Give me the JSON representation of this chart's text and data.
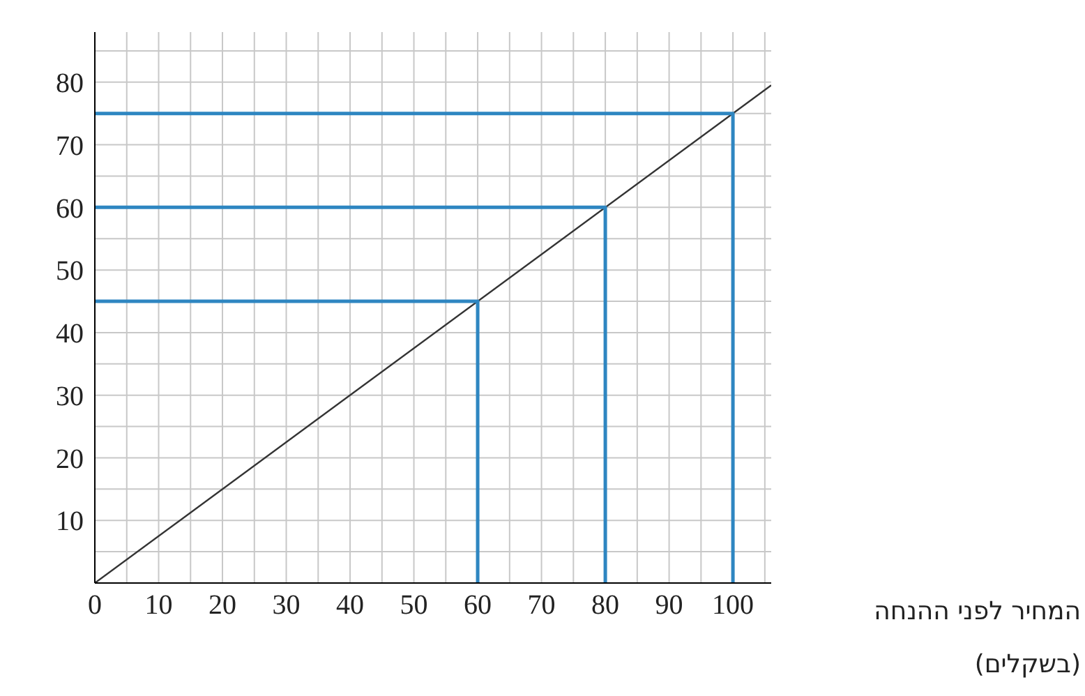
{
  "chart_data": {
    "type": "line",
    "xlabel": "המחיר לפני ההנחה (בשקלים)",
    "xlim": [
      0,
      106
    ],
    "ylim": [
      0,
      88
    ],
    "xticks": [
      0,
      {
        "value": 5,
        "label": null
      },
      10,
      {
        "value": 15,
        "label": null
      },
      20,
      {
        "value": 25,
        "label": null
      },
      30,
      {
        "value": 35,
        "label": null
      },
      40,
      {
        "value": 45,
        "label": null
      },
      50,
      {
        "value": 55,
        "label": null
      },
      60,
      {
        "value": 65,
        "label": null
      },
      70,
      {
        "value": 75,
        "label": null
      },
      80,
      {
        "value": 85,
        "label": null
      },
      90,
      {
        "value": 95,
        "label": null
      },
      100,
      {
        "value": 105,
        "label": null
      }
    ],
    "yticks": [
      {
        "value": 0,
        "label": null
      },
      {
        "value": 5,
        "label": null
      },
      10,
      {
        "value": 15,
        "label": null
      },
      20,
      {
        "value": 25,
        "label": null
      },
      30,
      {
        "value": 35,
        "label": null
      },
      40,
      {
        "value": 45,
        "label": null
      },
      50,
      {
        "value": 55,
        "label": null
      },
      60,
      {
        "value": 65,
        "label": null
      },
      70,
      {
        "value": 75,
        "label": null
      },
      80,
      {
        "value": 85,
        "label": null
      }
    ],
    "grid": true,
    "marker": "none",
    "line_style": "solid",
    "series": [
      {
        "color": "#333333",
        "x": [
          0,
          106
        ],
        "values": [
          0,
          79.5
        ]
      },
      {
        "color": "#2e86c1",
        "x": [
          0,
          60,
          60
        ],
        "values": [
          45,
          45,
          0
        ]
      },
      {
        "color": "#2e86c1",
        "x": [
          0,
          80,
          80
        ],
        "values": [
          60,
          60,
          0
        ]
      },
      {
        "color": "#2e86c1",
        "x": [
          0,
          100,
          100
        ],
        "values": [
          75,
          75,
          0
        ]
      }
    ]
  }
}
